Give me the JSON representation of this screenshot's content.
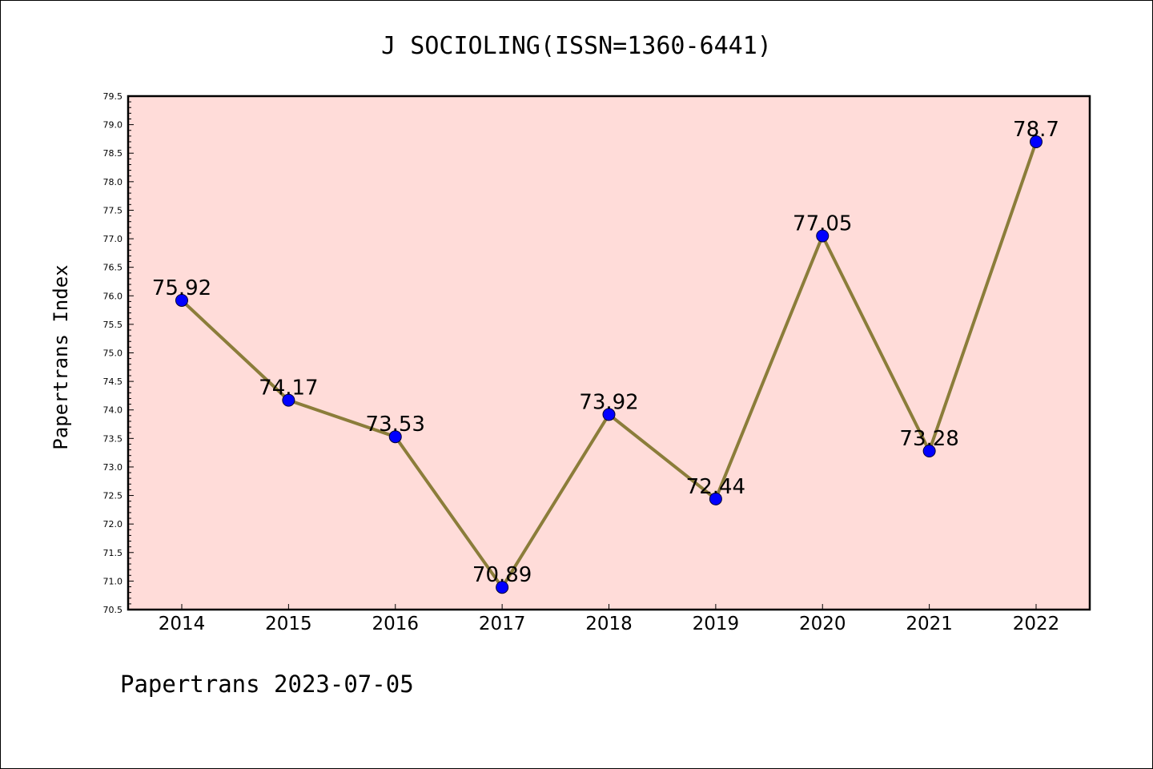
{
  "chart_data": {
    "type": "line",
    "title": "J SOCIOLING(ISSN=1360-6441)",
    "ylabel": "Papertrans Index",
    "xlabel": "",
    "categories": [
      "2014",
      "2015",
      "2016",
      "2017",
      "2018",
      "2019",
      "2020",
      "2021",
      "2022"
    ],
    "values": [
      75.92,
      74.17,
      73.53,
      70.89,
      73.92,
      72.44,
      77.05,
      73.28,
      78.7
    ],
    "data_labels": [
      "75.92",
      "74.17",
      "73.53",
      "70.89",
      "73.92",
      "72.44",
      "77.05",
      "73.28",
      "78.7"
    ],
    "ylim": [
      70.5,
      79.5
    ],
    "yticks": [
      "70.5",
      "71.0",
      "71.5",
      "72.0",
      "72.5",
      "73.0",
      "73.5",
      "74.0",
      "74.5",
      "75.0",
      "75.5",
      "76.0",
      "76.5",
      "77.0",
      "77.5",
      "78.0",
      "78.5",
      "79.0",
      "79.5"
    ],
    "grid": false,
    "colors": {
      "plot_background": "#ffdcd9",
      "line": "#8b7d3a",
      "marker": "#0000ff"
    }
  },
  "footer": "Papertrans 2023-07-05"
}
